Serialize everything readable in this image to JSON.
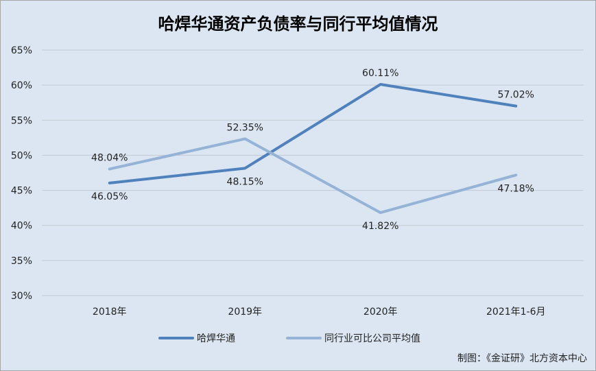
{
  "chart_data": {
    "type": "line",
    "title": "哈焊华通资产负债率与同行平均值情况",
    "categories": [
      "2018年",
      "2019年",
      "2020年",
      "2021年1-6月"
    ],
    "ylim": [
      30,
      65
    ],
    "yticks": [
      30,
      35,
      40,
      45,
      50,
      55,
      60,
      65
    ],
    "ytick_labels": [
      "30%",
      "35%",
      "40%",
      "45%",
      "50%",
      "55%",
      "60%",
      "65%"
    ],
    "grid": true,
    "legend_position": "bottom",
    "series": [
      {
        "name": "哈焊华通",
        "color": "#4f81bd",
        "values": [
          46.05,
          48.15,
          60.11,
          57.02
        ],
        "labels": [
          "46.05%",
          "48.15%",
          "60.11%",
          "57.02%"
        ],
        "label_positions": [
          "below",
          "below",
          "above",
          "above"
        ]
      },
      {
        "name": "同行业可比公司平均值",
        "color": "#95b3d7",
        "values": [
          48.04,
          52.35,
          41.82,
          47.18
        ],
        "labels": [
          "48.04%",
          "52.35%",
          "41.82%",
          "47.18%"
        ],
        "label_positions": [
          "above",
          "above",
          "below",
          "below"
        ]
      }
    ]
  },
  "credit": "制图：《金证研》北方资本中心"
}
